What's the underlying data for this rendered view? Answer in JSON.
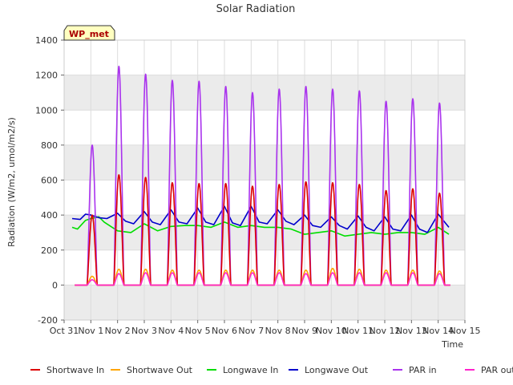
{
  "chart_data": {
    "type": "line",
    "title": "Solar Radiation",
    "xlabel": "Time",
    "ylabel": "Radiation (W/m2, umol/m2/s)",
    "station_label": "WP_met",
    "xlim": [
      0,
      15
    ],
    "ylim": [
      -200,
      1400
    ],
    "x_ticks": [
      0,
      1,
      2,
      3,
      4,
      5,
      6,
      7,
      8,
      9,
      10,
      11,
      12,
      13,
      14,
      15
    ],
    "x_tick_labels": [
      "Oct 31",
      "Nov 1",
      "Nov 2",
      "Nov 3",
      "Nov 4",
      "Nov 5",
      "Nov 6",
      "Nov 7",
      "Nov 8",
      "Nov 9",
      "Nov 10",
      "Nov 11",
      "Nov 12",
      "Nov 13",
      "Nov 14",
      "Nov 15"
    ],
    "y_ticks": [
      -200,
      0,
      200,
      400,
      600,
      800,
      1000,
      1200,
      1400
    ],
    "y_tick_labels": [
      "-200",
      "0",
      "200",
      "400",
      "600",
      "800",
      "1000",
      "1200",
      "1400"
    ],
    "grid": true,
    "legend_position": "bottom",
    "days": [
      1,
      2,
      3,
      4,
      5,
      6,
      7,
      8,
      9,
      10,
      11,
      12,
      13,
      14
    ],
    "series": [
      {
        "name": "Shortwave In",
        "color": "#dd0000",
        "daily_peaks": [
          400,
          630,
          615,
          585,
          580,
          580,
          565,
          575,
          590,
          585,
          575,
          540,
          550,
          525
        ]
      },
      {
        "name": "Shortwave Out",
        "color": "#ffa500",
        "daily_peaks": [
          50,
          90,
          90,
          85,
          85,
          85,
          85,
          85,
          85,
          95,
          90,
          85,
          85,
          80
        ]
      },
      {
        "name": "Longwave In",
        "color": "#00dd00",
        "x": [
          0.3,
          0.5,
          0.8,
          1.0,
          1.3,
          1.5,
          2.0,
          2.5,
          3.0,
          3.5,
          4.0,
          4.5,
          5.0,
          5.5,
          6.0,
          6.5,
          7.0,
          7.5,
          8.0,
          8.5,
          9.0,
          9.5,
          10.0,
          10.5,
          11.0,
          11.5,
          12.0,
          12.5,
          13.0,
          13.5,
          14.0,
          14.4
        ],
        "values": [
          330,
          320,
          370,
          380,
          390,
          360,
          310,
          300,
          350,
          310,
          335,
          340,
          340,
          330,
          360,
          330,
          340,
          330,
          330,
          320,
          290,
          300,
          310,
          280,
          290,
          300,
          290,
          300,
          300,
          290,
          330,
          290
        ]
      },
      {
        "name": "Longwave Out",
        "color": "#0000cc",
        "x": [
          0.3,
          0.6,
          0.8,
          1.0,
          1.3,
          1.6,
          2.0,
          2.3,
          2.6,
          3.0,
          3.3,
          3.6,
          4.0,
          4.3,
          4.6,
          5.0,
          5.3,
          5.6,
          6.0,
          6.3,
          6.6,
          7.0,
          7.3,
          7.6,
          8.0,
          8.3,
          8.6,
          9.0,
          9.3,
          9.6,
          10.0,
          10.3,
          10.6,
          11.0,
          11.3,
          11.6,
          12.0,
          12.3,
          12.6,
          13.0,
          13.3,
          13.6,
          14.0,
          14.4
        ],
        "values": [
          380,
          375,
          405,
          400,
          385,
          380,
          410,
          365,
          350,
          420,
          360,
          345,
          430,
          360,
          350,
          440,
          360,
          345,
          450,
          355,
          340,
          450,
          360,
          350,
          430,
          365,
          345,
          400,
          340,
          330,
          390,
          340,
          320,
          395,
          330,
          310,
          390,
          320,
          310,
          400,
          320,
          300,
          405,
          330
        ]
      },
      {
        "name": "PAR in",
        "color": "#aa33ee",
        "daily_peaks": [
          800,
          1250,
          1205,
          1170,
          1165,
          1135,
          1100,
          1120,
          1135,
          1120,
          1110,
          1050,
          1065,
          1040
        ]
      },
      {
        "name": "PAR out",
        "color": "#ff22cc",
        "daily_peaks": [
          30,
          65,
          70,
          70,
          70,
          70,
          70,
          70,
          65,
          70,
          70,
          70,
          70,
          65
        ]
      }
    ]
  }
}
